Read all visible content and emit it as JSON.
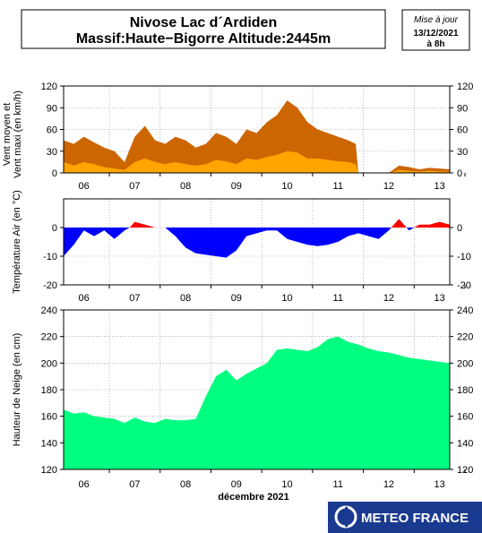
{
  "header": {
    "title_line1": "Nivose Lac d´Ardiden",
    "title_line2": "Massif:Haute−Bigorre Altitude:2445m",
    "update_label": "Mise à jour",
    "update_date": "13/12/2021",
    "update_time": "à 8h"
  },
  "logo": {
    "text": "METEO FRANCE"
  },
  "x_axis": {
    "day_ticks": [
      "06",
      "07",
      "08",
      "09",
      "10",
      "11",
      "12",
      "13"
    ],
    "month_label": "décembre 2021"
  },
  "colors": {
    "wind_max": "#CC6600",
    "wind_mean": "#FFA500",
    "temp_negative": "#0000FF",
    "temp_positive": "#FF0000",
    "snow": "#00FF80",
    "grid": "#888888"
  },
  "chart_data": [
    {
      "type": "area",
      "ylabel_line1": "Vent moyen et",
      "ylabel_line2": "Vent maxi (en km/h)",
      "ylim": [
        0,
        120
      ],
      "yticks": [
        0,
        30,
        60,
        90,
        120
      ],
      "grid": true,
      "x": [
        5.6,
        5.8,
        6.0,
        6.2,
        6.4,
        6.6,
        6.8,
        7.0,
        7.2,
        7.4,
        7.6,
        7.8,
        8.0,
        8.2,
        8.4,
        8.6,
        8.8,
        9.0,
        9.2,
        9.4,
        9.6,
        9.8,
        10.0,
        10.2,
        10.4,
        10.6,
        10.8,
        11.0,
        11.2,
        11.35,
        11.4,
        12.0,
        12.2,
        12.4,
        12.6,
        12.8,
        13.0,
        13.2
      ],
      "series": [
        {
          "name": "Vent maxi",
          "values": [
            45,
            40,
            50,
            42,
            35,
            30,
            15,
            50,
            65,
            45,
            40,
            50,
            45,
            35,
            40,
            55,
            50,
            40,
            60,
            55,
            70,
            80,
            100,
            90,
            70,
            60,
            55,
            50,
            45,
            40,
            0,
            0,
            10,
            8,
            5,
            7,
            6,
            5
          ]
        },
        {
          "name": "Vent moyen",
          "values": [
            15,
            10,
            15,
            12,
            8,
            6,
            4,
            15,
            20,
            15,
            12,
            15,
            12,
            10,
            12,
            18,
            16,
            12,
            20,
            18,
            22,
            25,
            30,
            28,
            20,
            20,
            18,
            16,
            15,
            12,
            0,
            0,
            4,
            3,
            2,
            3,
            2,
            2
          ]
        }
      ]
    },
    {
      "type": "area",
      "ylabel": "Température Air (en °C)",
      "ylim": [
        -20,
        10
      ],
      "yticks": [
        -20,
        -10,
        0
      ],
      "grid": true,
      "x": [
        5.6,
        5.8,
        6.0,
        6.2,
        6.4,
        6.6,
        6.8,
        6.9,
        7.0,
        7.2,
        7.4,
        7.6,
        7.8,
        8.0,
        8.2,
        8.4,
        8.6,
        8.8,
        9.0,
        9.2,
        9.4,
        9.6,
        9.8,
        10.0,
        10.2,
        10.4,
        10.6,
        10.8,
        11.0,
        11.2,
        11.4,
        11.6,
        11.8,
        12.0,
        12.2,
        12.4,
        12.6,
        12.8,
        13.0,
        13.2
      ],
      "values": [
        -10,
        -6,
        -1,
        -3,
        -1,
        -4,
        -1,
        0,
        2,
        1,
        0,
        0,
        -3,
        -7,
        -9,
        -9.5,
        -10,
        -10.5,
        -8,
        -3,
        -2,
        -1,
        -1,
        -4,
        -5,
        -6,
        -6.5,
        -6,
        -5,
        -3,
        -2,
        -3,
        -4,
        -1,
        3,
        -1,
        1,
        1,
        2,
        1
      ]
    },
    {
      "type": "area",
      "ylabel": "Hauteur de Neige (en cm)",
      "ylim": [
        120,
        240
      ],
      "yticks": [
        120,
        140,
        160,
        180,
        200,
        220,
        240
      ],
      "grid": true,
      "x": [
        5.6,
        5.8,
        6.0,
        6.2,
        6.4,
        6.6,
        6.8,
        7.0,
        7.2,
        7.4,
        7.6,
        7.8,
        8.0,
        8.2,
        8.4,
        8.6,
        8.8,
        9.0,
        9.2,
        9.4,
        9.6,
        9.8,
        10.0,
        10.2,
        10.4,
        10.6,
        10.8,
        11.0,
        11.2,
        11.4,
        11.6,
        11.8,
        12.0,
        12.2,
        12.4,
        12.6,
        12.8,
        13.0,
        13.2
      ],
      "values": [
        165,
        162,
        163,
        160,
        159,
        158,
        155,
        159,
        156,
        155,
        158,
        157,
        157,
        158,
        175,
        190,
        195,
        187,
        192,
        196,
        200,
        210,
        211,
        210,
        209,
        212,
        218,
        220,
        216,
        214,
        211,
        209,
        208,
        206,
        204,
        203,
        202,
        201,
        200
      ]
    }
  ]
}
